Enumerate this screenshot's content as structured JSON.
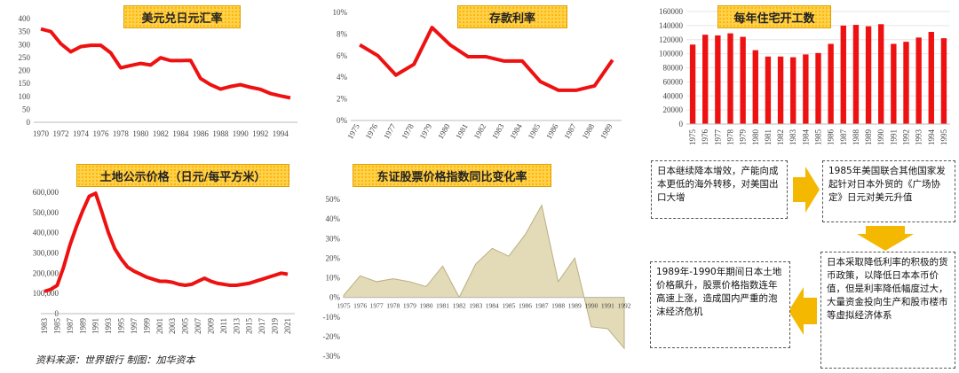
{
  "source_note": "资料来源：世界银行   制图：加华资本",
  "flow": {
    "box1": "日本继续降本增效，产能向成本更低的海外转移，对美国出口大增",
    "box2": "1985年美国联合其他国家发起针对日本外贸的《广场协定》日元对美元升值",
    "box3": "日本采取降低利率的积极的货币政策，以降低日本本币价值，但是利率降低幅度过大，大量资金投向生产和股市楼市等虚拟经济体系",
    "box4": "1989年-1990年期间日本土地价格飙升，股票价格指数连年高速上涨，造成国内严重的泡沫经济危机",
    "arrow_color": "#f5b800"
  },
  "colors": {
    "red": "#ee1111",
    "area_fill": "#e3dbb7",
    "area_line": "#b9ad82",
    "title_bg": "#ffd24d"
  },
  "chart_data": [
    {
      "id": "usd-jpy",
      "type": "line",
      "title": "美元兑日元汇率",
      "x": [
        1970,
        1971,
        1972,
        1973,
        1974,
        1975,
        1976,
        1977,
        1978,
        1979,
        1980,
        1981,
        1982,
        1983,
        1984,
        1985,
        1986,
        1987,
        1988,
        1989,
        1990,
        1991,
        1992,
        1993,
        1994,
        1995
      ],
      "xtick_labels": [
        "1970",
        "1972",
        "1974",
        "1976",
        "1978",
        "1980",
        "1982",
        "1984",
        "1986",
        "1988",
        "1990",
        "1992",
        "1994"
      ],
      "values": [
        360,
        350,
        303,
        272,
        292,
        297,
        297,
        268,
        210,
        219,
        227,
        221,
        249,
        238,
        238,
        239,
        169,
        145,
        128,
        138,
        145,
        135,
        127,
        111,
        102,
        94
      ],
      "ylim": [
        0,
        400
      ],
      "yticks": [
        "0",
        "50",
        "100",
        "150",
        "200",
        "250",
        "300",
        "350",
        "400"
      ]
    },
    {
      "id": "deposit-rate",
      "type": "line",
      "title": "存款利率",
      "x": [
        "1975",
        "1976",
        "1977",
        "1978",
        "1979",
        "1980",
        "1981",
        "1982",
        "1983",
        "1984",
        "1985",
        "1986",
        "1987",
        "1988",
        "1989"
      ],
      "values": [
        7.0,
        6.0,
        4.2,
        5.2,
        8.6,
        7.0,
        5.9,
        5.9,
        5.5,
        5.5,
        3.6,
        2.8,
        2.8,
        3.2,
        5.6
      ],
      "ylim": [
        0,
        10
      ],
      "yticks": [
        "0%",
        "2%",
        "4%",
        "6%",
        "8%",
        "10%"
      ]
    },
    {
      "id": "housing-starts",
      "type": "bar",
      "title": "每年住宅开工数",
      "categories": [
        "1975",
        "1976",
        "1977",
        "1978",
        "1979",
        "1980",
        "1981",
        "1982",
        "1983",
        "1984",
        "1985",
        "1986",
        "1987",
        "1988",
        "1989",
        "1990",
        "1991",
        "1992",
        "1993",
        "1994",
        "1995"
      ],
      "values": [
        113000,
        127000,
        126000,
        129000,
        124000,
        105000,
        96000,
        96000,
        95000,
        99000,
        101000,
        114000,
        140000,
        141000,
        139000,
        142000,
        114000,
        117000,
        123000,
        131000,
        122000
      ],
      "ylim": [
        0,
        160000
      ],
      "yticks": [
        "0",
        "20000",
        "40000",
        "60000",
        "80000",
        "100000",
        "120000",
        "140000",
        "160000"
      ]
    },
    {
      "id": "land-price",
      "type": "line",
      "title": "土地公示价格（日元/每平方米）",
      "x": [
        1983,
        1984,
        1985,
        1986,
        1987,
        1988,
        1989,
        1990,
        1991,
        1992,
        1993,
        1994,
        1995,
        1996,
        1997,
        1998,
        1999,
        2000,
        2001,
        2002,
        2003,
        2004,
        2005,
        2006,
        2007,
        2008,
        2009,
        2010,
        2011,
        2012,
        2013,
        2014,
        2015,
        2016,
        2017,
        2018,
        2019,
        2020,
        2021
      ],
      "xtick_labels": [
        "1983",
        "1985",
        "1987",
        "1989",
        "1991",
        "1993",
        "1995",
        "1997",
        "1999",
        "2001",
        "2003",
        "2005",
        "2007",
        "2009",
        "2011",
        "2013",
        "2015",
        "2017",
        "2019",
        "2021"
      ],
      "values": [
        110000,
        120000,
        140000,
        230000,
        340000,
        430000,
        510000,
        580000,
        595000,
        500000,
        400000,
        320000,
        270000,
        230000,
        210000,
        195000,
        180000,
        170000,
        160000,
        160000,
        155000,
        145000,
        140000,
        145000,
        160000,
        175000,
        160000,
        150000,
        145000,
        140000,
        140000,
        145000,
        150000,
        160000,
        170000,
        180000,
        190000,
        200000,
        195000
      ],
      "ylim": [
        0,
        600000
      ],
      "yticks": [
        "0",
        "100,000",
        "200,000",
        "300,000",
        "400,000",
        "500,000",
        "600,000"
      ]
    },
    {
      "id": "topix-yoy",
      "type": "area",
      "title": "东证股票价格指数同比变化率",
      "x": [
        "1975",
        "1976",
        "1977",
        "1978",
        "1979",
        "1980",
        "1981",
        "1982",
        "1983",
        "1984",
        "1985",
        "1986",
        "1987",
        "1988",
        "1989",
        "1990",
        "1991",
        "1992"
      ],
      "values": [
        1,
        11,
        8,
        9.5,
        8,
        5.5,
        16,
        0,
        17,
        25,
        21,
        32,
        47,
        8,
        20,
        -15,
        -16,
        -26
      ],
      "ylim": [
        -30,
        50
      ],
      "yticks": [
        "-30%",
        "-20%",
        "-10%",
        "0%",
        "10%",
        "20%",
        "30%",
        "40%",
        "50%"
      ]
    }
  ]
}
